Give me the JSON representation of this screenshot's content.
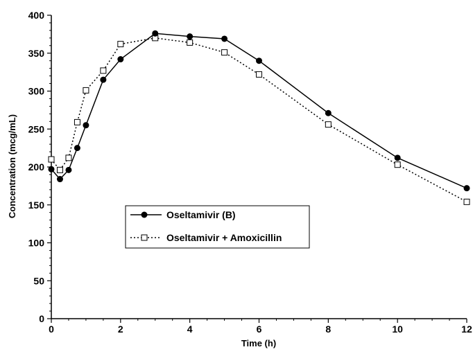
{
  "chart_data": {
    "type": "line",
    "title": "",
    "xlabel": "Time (h)",
    "ylabel": "Concentration (mcg/mL)",
    "xlim": [
      0,
      12
    ],
    "ylim": [
      0,
      400
    ],
    "x_ticks": [
      0,
      2,
      4,
      6,
      8,
      10,
      12
    ],
    "y_ticks": [
      0,
      50,
      100,
      150,
      200,
      250,
      300,
      350,
      400
    ],
    "grid": false,
    "legend_position": "center-left",
    "series": [
      {
        "name": "Oseltamivir (B)",
        "line_style": "solid",
        "marker": "filled-circle",
        "color": "#000000",
        "x": [
          0,
          0.25,
          0.5,
          0.75,
          1,
          1.5,
          2,
          3,
          4,
          5,
          6,
          8,
          10,
          12
        ],
        "y": [
          197,
          184,
          196,
          225,
          255,
          315,
          342,
          376,
          372,
          369,
          340,
          271,
          212,
          172
        ]
      },
      {
        "name": "Oseltamivir + Amoxicillin",
        "line_style": "dotted",
        "marker": "open-square",
        "color": "#000000",
        "x": [
          0,
          0.25,
          0.5,
          0.75,
          1,
          1.5,
          2,
          3,
          4,
          5,
          6,
          8,
          10,
          12
        ],
        "y": [
          210,
          196,
          212,
          259,
          301,
          327,
          362,
          370,
          364,
          351,
          322,
          256,
          203,
          154
        ]
      }
    ]
  }
}
